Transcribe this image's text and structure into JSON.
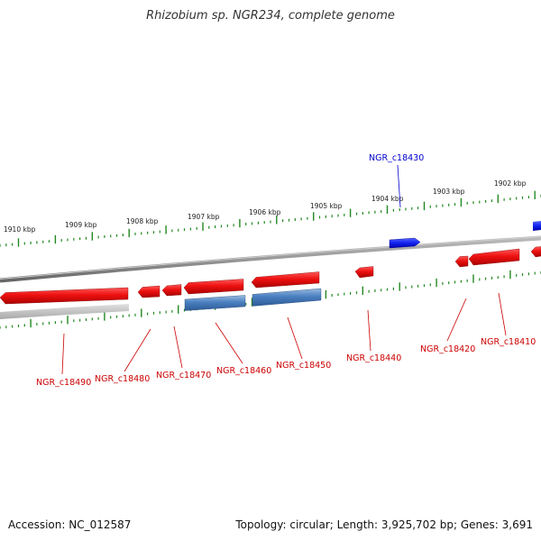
{
  "title": "Rhizobium sp. NGR234, complete genome",
  "scale_labels": [
    "1910 kbp",
    "1909 kbp",
    "1908 kbp",
    "1907 kbp",
    "1906 kbp",
    "1905 kbp",
    "1904 kbp",
    "1903 kbp",
    "1902 kbp"
  ],
  "genes": [
    {
      "label": "NGR_c18430",
      "color": "#0000cc"
    },
    {
      "label": "NGR_c18490",
      "color": "#cc0000"
    },
    {
      "label": "NGR_c18480",
      "color": "#cc0000"
    },
    {
      "label": "NGR_c18470",
      "color": "#cc0000"
    },
    {
      "label": "NGR_c18460",
      "color": "#cc0000"
    },
    {
      "label": "NGR_c18450",
      "color": "#cc0000"
    },
    {
      "label": "NGR_c18440",
      "color": "#cc0000"
    },
    {
      "label": "NGR_c18420",
      "color": "#cc0000"
    },
    {
      "label": "NGR_c18410",
      "color": "#cc0000"
    }
  ],
  "footer": {
    "accession": "Accession: NC_012587",
    "summary": "Topology: circular; Length: 3,925,702 bp; Genes: 3,691"
  },
  "colors": {
    "forward_gene": "#ee1111",
    "reverse_gene": "#4477bb",
    "plus_strand_gene": "#1122ee",
    "backbone": "#888888",
    "tick": "#228822"
  }
}
